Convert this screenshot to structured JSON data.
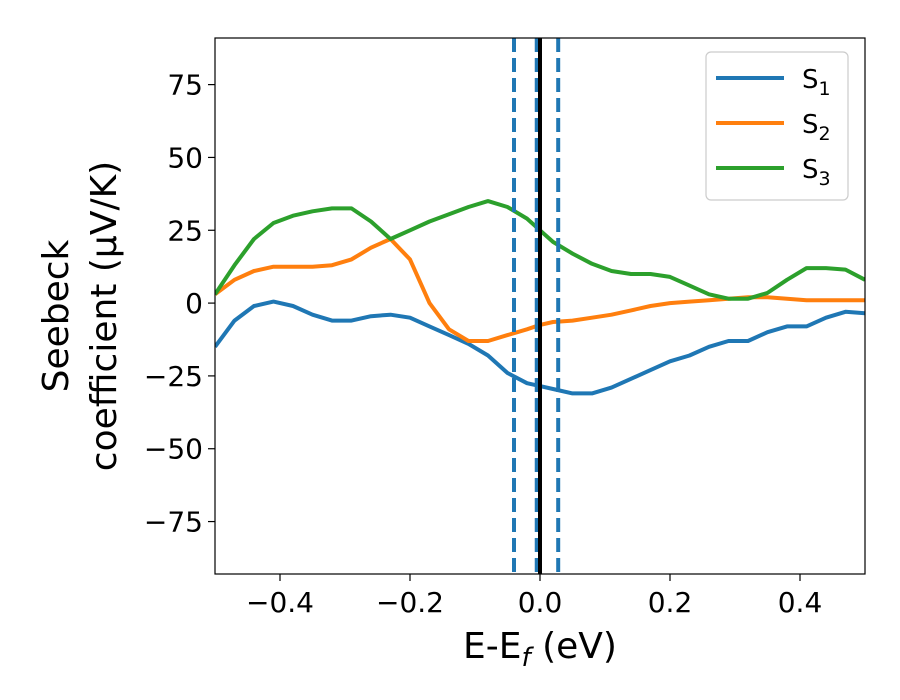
{
  "chart_data": {
    "type": "line",
    "xlabel": {
      "base": "E-E",
      "sub": "f",
      "rest": " (eV)"
    },
    "ylabel": {
      "line1": "Seebeck",
      "line2": "coefficient  (μV/K)"
    },
    "xlim": [
      -0.5,
      0.5
    ],
    "ylim": [
      -93,
      91
    ],
    "x_ticks": [
      -0.4,
      -0.2,
      0.0,
      0.2,
      0.4
    ],
    "x_tick_labels": [
      "−0.4",
      "−0.2",
      "0.0",
      "0.2",
      "0.4"
    ],
    "y_ticks": [
      -75,
      -50,
      -25,
      0,
      25,
      50,
      75
    ],
    "y_tick_labels": [
      "−75",
      "−50",
      "−25",
      "0",
      "25",
      "50",
      "75"
    ],
    "grid": false,
    "legend_position": "top-right",
    "series": [
      {
        "name": "S",
        "sub": "1",
        "color": "#1f77b4",
        "points": [
          [
            -0.5,
            -15
          ],
          [
            -0.47,
            -6
          ],
          [
            -0.44,
            -1
          ],
          [
            -0.41,
            0.5
          ],
          [
            -0.38,
            -1
          ],
          [
            -0.35,
            -4
          ],
          [
            -0.32,
            -6
          ],
          [
            -0.29,
            -6
          ],
          [
            -0.26,
            -4.5
          ],
          [
            -0.23,
            -4
          ],
          [
            -0.2,
            -5
          ],
          [
            -0.17,
            -8
          ],
          [
            -0.14,
            -11
          ],
          [
            -0.11,
            -14
          ],
          [
            -0.08,
            -18
          ],
          [
            -0.05,
            -24
          ],
          [
            -0.02,
            -27.5
          ],
          [
            0.0,
            -28.5
          ],
          [
            0.02,
            -29.5
          ],
          [
            0.05,
            -31
          ],
          [
            0.08,
            -31
          ],
          [
            0.11,
            -29
          ],
          [
            0.14,
            -26
          ],
          [
            0.17,
            -23
          ],
          [
            0.2,
            -20
          ],
          [
            0.23,
            -18
          ],
          [
            0.26,
            -15
          ],
          [
            0.29,
            -13
          ],
          [
            0.32,
            -13
          ],
          [
            0.35,
            -10
          ],
          [
            0.38,
            -8
          ],
          [
            0.41,
            -8
          ],
          [
            0.44,
            -5
          ],
          [
            0.47,
            -3
          ],
          [
            0.5,
            -3.5
          ]
        ]
      },
      {
        "name": "S",
        "sub": "2",
        "color": "#ff7f0e",
        "points": [
          [
            -0.5,
            3
          ],
          [
            -0.47,
            8
          ],
          [
            -0.44,
            11
          ],
          [
            -0.41,
            12.5
          ],
          [
            -0.38,
            12.5
          ],
          [
            -0.35,
            12.5
          ],
          [
            -0.32,
            13
          ],
          [
            -0.29,
            15
          ],
          [
            -0.26,
            19
          ],
          [
            -0.23,
            22
          ],
          [
            -0.2,
            15
          ],
          [
            -0.17,
            0
          ],
          [
            -0.14,
            -9
          ],
          [
            -0.11,
            -13
          ],
          [
            -0.08,
            -13
          ],
          [
            -0.05,
            -11
          ],
          [
            -0.02,
            -9
          ],
          [
            0.0,
            -7.5
          ],
          [
            0.02,
            -6.5
          ],
          [
            0.05,
            -6
          ],
          [
            0.08,
            -5
          ],
          [
            0.11,
            -4
          ],
          [
            0.14,
            -2.5
          ],
          [
            0.17,
            -1
          ],
          [
            0.2,
            0
          ],
          [
            0.23,
            0.5
          ],
          [
            0.26,
            1
          ],
          [
            0.29,
            1.5
          ],
          [
            0.32,
            2
          ],
          [
            0.35,
            2
          ],
          [
            0.38,
            1.5
          ],
          [
            0.41,
            1
          ],
          [
            0.44,
            1
          ],
          [
            0.47,
            1
          ],
          [
            0.5,
            1
          ]
        ]
      },
      {
        "name": "S",
        "sub": "3",
        "color": "#2ca02c",
        "points": [
          [
            -0.5,
            3
          ],
          [
            -0.47,
            13
          ],
          [
            -0.44,
            22
          ],
          [
            -0.41,
            27.5
          ],
          [
            -0.38,
            30
          ],
          [
            -0.35,
            31.5
          ],
          [
            -0.32,
            32.5
          ],
          [
            -0.29,
            32.5
          ],
          [
            -0.26,
            28
          ],
          [
            -0.23,
            22
          ],
          [
            -0.2,
            25
          ],
          [
            -0.17,
            28
          ],
          [
            -0.14,
            30.5
          ],
          [
            -0.11,
            33
          ],
          [
            -0.08,
            35
          ],
          [
            -0.05,
            33
          ],
          [
            -0.02,
            29
          ],
          [
            0.0,
            25
          ],
          [
            0.02,
            21
          ],
          [
            0.05,
            17
          ],
          [
            0.08,
            13.5
          ],
          [
            0.11,
            11
          ],
          [
            0.14,
            10
          ],
          [
            0.17,
            10
          ],
          [
            0.2,
            9
          ],
          [
            0.23,
            6
          ],
          [
            0.26,
            3
          ],
          [
            0.29,
            1.5
          ],
          [
            0.32,
            1.5
          ],
          [
            0.35,
            3.5
          ],
          [
            0.38,
            8
          ],
          [
            0.41,
            12
          ],
          [
            0.44,
            12
          ],
          [
            0.47,
            11.5
          ],
          [
            0.5,
            8
          ]
        ]
      }
    ],
    "vertical_lines": [
      {
        "x": -0.04,
        "style": "dashed",
        "color": "#1f77b4"
      },
      {
        "x": -0.005,
        "style": "dashed",
        "color": "#1f77b4"
      },
      {
        "x": 0.028,
        "style": "dashed",
        "color": "#1f77b4"
      },
      {
        "x": 0.0,
        "style": "solid",
        "color": "#000000"
      }
    ]
  }
}
